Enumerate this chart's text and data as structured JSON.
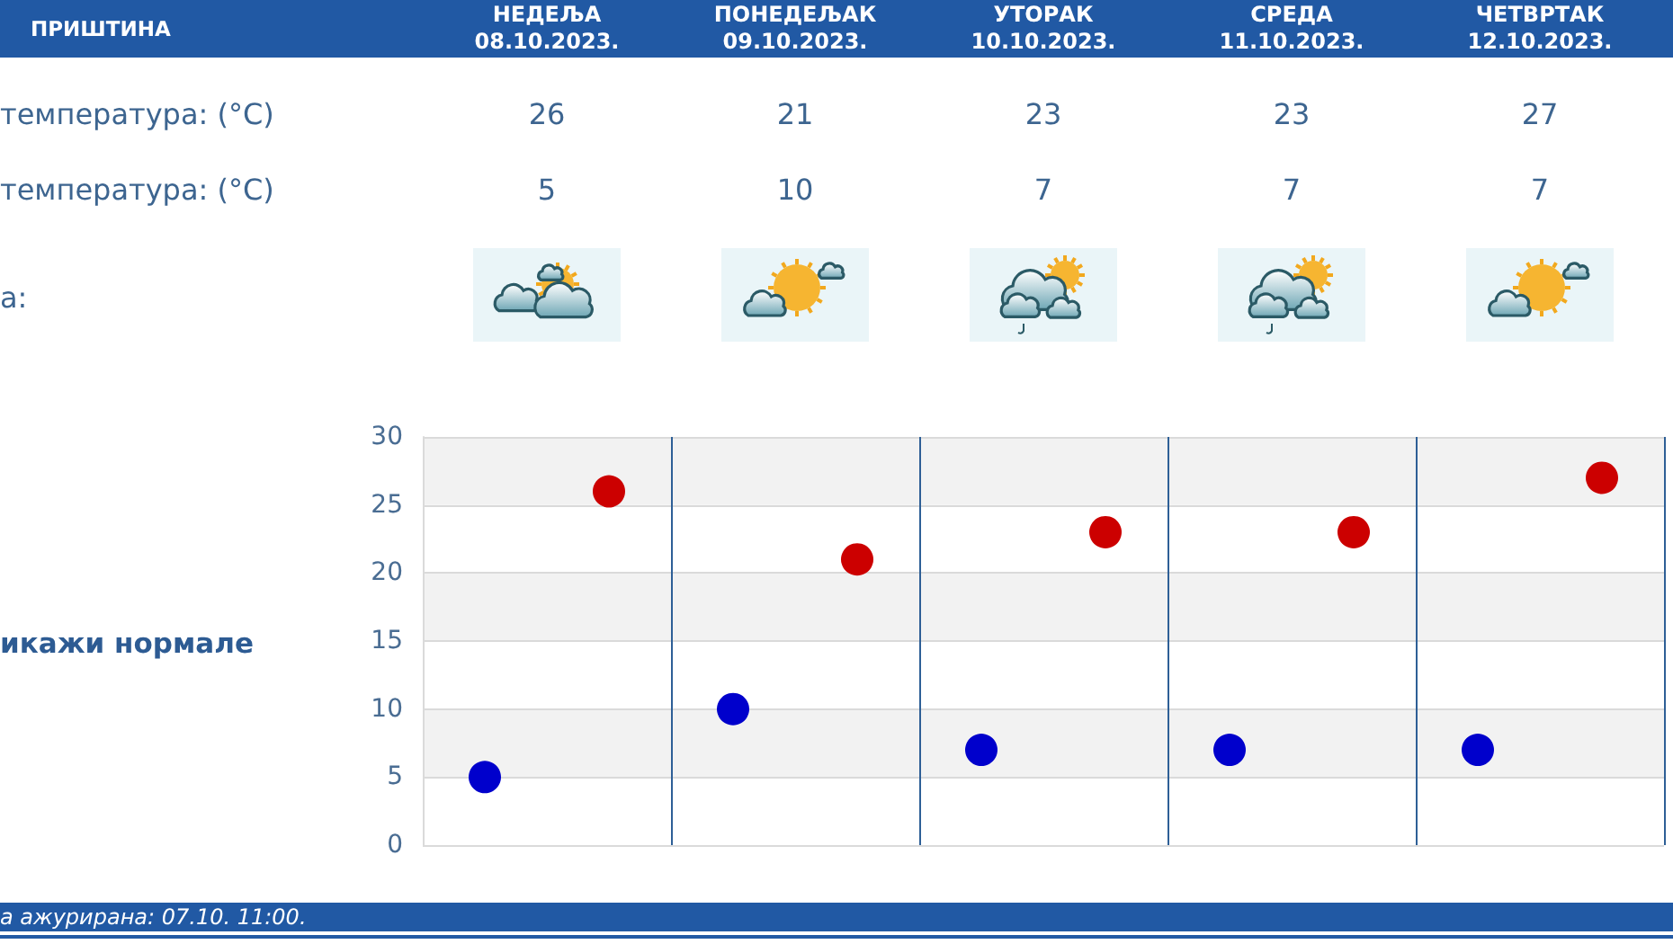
{
  "chart_data": {
    "type": "scatter",
    "title": "ПРИШТИНА",
    "categories": [
      null,
      null,
      null,
      null,
      null
    ],
    "series": [
      {
        "color": "#cc0000",
        "values": [
          26,
          21,
          23,
          23,
          27
        ]
      },
      {
        "color": "#0000cc",
        "values": [
          5,
          10,
          7,
          7,
          7
        ]
      }
    ],
    "ylim": [
      0,
      30
    ],
    "yticks": [
      0,
      5,
      10,
      15,
      20,
      25,
      30
    ],
    "grid": true,
    "marker": "circle",
    "data_labels": true,
    "annotations": [
      "НЕДЕЉА\n08.10.2023.",
      "ПОНЕДЕЉАК\n09.10.2023.",
      "УТОРАК\n10.10.2023.",
      "СРЕДА\n11.10.2023.",
      "ЧЕТВРТАК\n12.10.2023.",
      "температура: (°C)",
      "температура: (°C)",
      "а:",
      "икажи нормале",
      "а ажурирана: 07.10. 11:00."
    ]
  }
}
